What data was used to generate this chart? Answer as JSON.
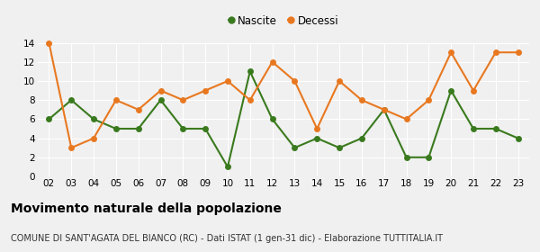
{
  "x_labels": [
    "02",
    "03",
    "04",
    "05",
    "06",
    "07",
    "08",
    "09",
    "10",
    "11",
    "12",
    "13",
    "14",
    "15",
    "16",
    "17",
    "18",
    "19",
    "20",
    "21",
    "22",
    "23"
  ],
  "nascite": [
    6,
    8,
    6,
    5,
    5,
    8,
    5,
    5,
    1,
    11,
    6,
    3,
    4,
    3,
    4,
    7,
    2,
    2,
    9,
    5,
    5,
    4
  ],
  "decessi": [
    14,
    3,
    4,
    8,
    7,
    9,
    8,
    9,
    10,
    8,
    12,
    10,
    5,
    10,
    8,
    7,
    6,
    8,
    13,
    9,
    13,
    13
  ],
  "nascite_color": "#3a7a1e",
  "decessi_color": "#e87820",
  "marker_size": 5,
  "line_width": 1.5,
  "title": "Movimento naturale della popolazione",
  "subtitle": "COMUNE DI SANT'AGATA DEL BIANCO (RC) - Dati ISTAT (1 gen-31 dic) - Elaborazione TUTTITALIA.IT",
  "ylim": [
    0,
    14
  ],
  "yticks": [
    0,
    2,
    4,
    6,
    8,
    10,
    12,
    14
  ],
  "legend_nascite": "Nascite",
  "legend_decessi": "Decessi",
  "bg_color": "#f0f0f0",
  "grid_color": "#ffffff",
  "title_fontsize": 10,
  "subtitle_fontsize": 7,
  "tick_fontsize": 7.5,
  "legend_fontsize": 8.5
}
